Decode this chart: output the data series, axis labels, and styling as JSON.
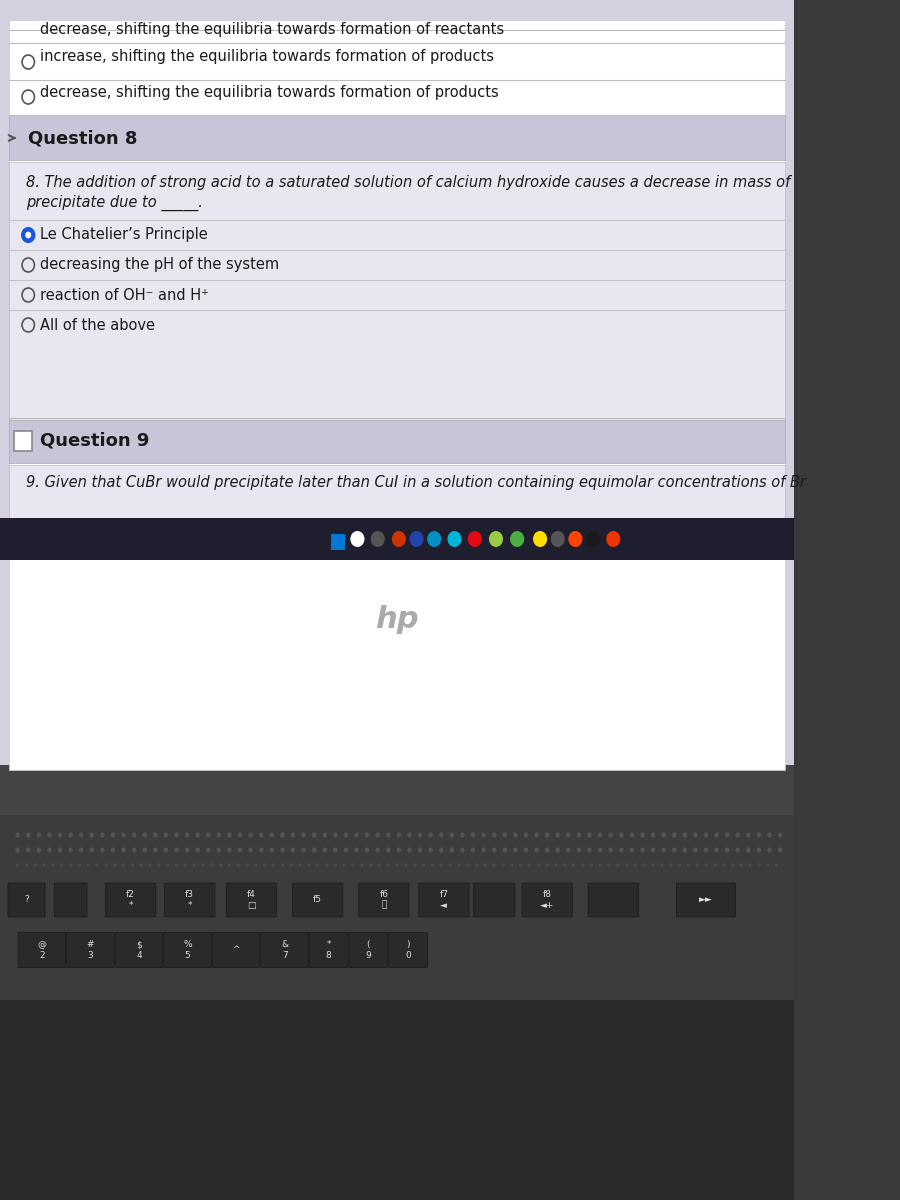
{
  "top_partial_option1": "decrease, shifting the equilibria towards formation of reactants",
  "option_increase": "increase, shifting the equilibria towards formation of products",
  "option_decrease": "decrease, shifting the equilibria towards formation of products",
  "q8_header": "Question 8",
  "q8_body": "8. The addition of strong acid to a saturated solution of calcium hydroxide causes a decrease in mass of\nprecipitate due to _____.",
  "q8_options": [
    {
      "text": "Le Chatelier’s Principle",
      "selected": true
    },
    {
      "text": "decreasing the pH of the system",
      "selected": false
    },
    {
      "text": "reaction of OH⁻ and H⁺",
      "selected": false
    },
    {
      "text": "All of the above",
      "selected": false
    }
  ],
  "q9_header": "Question 9",
  "q9_body": "9. Given that CuBr would precipitate later than CuI in a solution containing equimolar concentrations of Br",
  "bg_white": "#f0f0f0",
  "bg_header": "#c8c5d8",
  "bg_content": "#e8e6f0",
  "text_color": "#1a1a1a",
  "line_color": "#bbbbbb",
  "radio_selected_color": "#1a56db",
  "radio_unselected_color": "#555555",
  "taskbar_color": "#1a1a2e",
  "laptop_body_color": "#3a3a3a",
  "keyboard_color": "#2e2e2e",
  "speaker_dot_color": "#555555",
  "screen_bg": "#d4d0e0"
}
